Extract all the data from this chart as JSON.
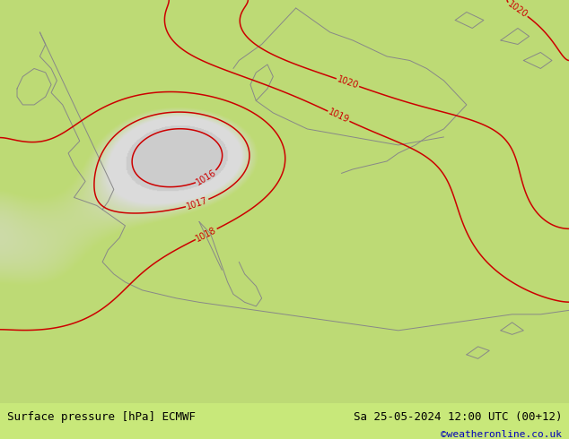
{
  "title_left": "Surface pressure [hPa] ECMWF",
  "title_right": "Sa 25-05-2024 12:00 UTC (00+12)",
  "watermark": "©weatheronline.co.uk",
  "bg_green": "#c8e87a",
  "bg_gray": "#c8c8c8",
  "sea_color": "#d8d8d8",
  "contour_color": "#cc0000",
  "label_color": "#cc0000",
  "coastline_color": "#888888",
  "bottom_bar_color": "#d8d8d8",
  "bottom_text_color": "#000000",
  "watermark_color": "#0000bb",
  "figsize": [
    6.34,
    4.9
  ],
  "dpi": 100,
  "font_size_bottom": 9,
  "font_size_watermark": 8,
  "pressure_levels": [
    1016,
    1017,
    1018,
    1019,
    1020
  ]
}
